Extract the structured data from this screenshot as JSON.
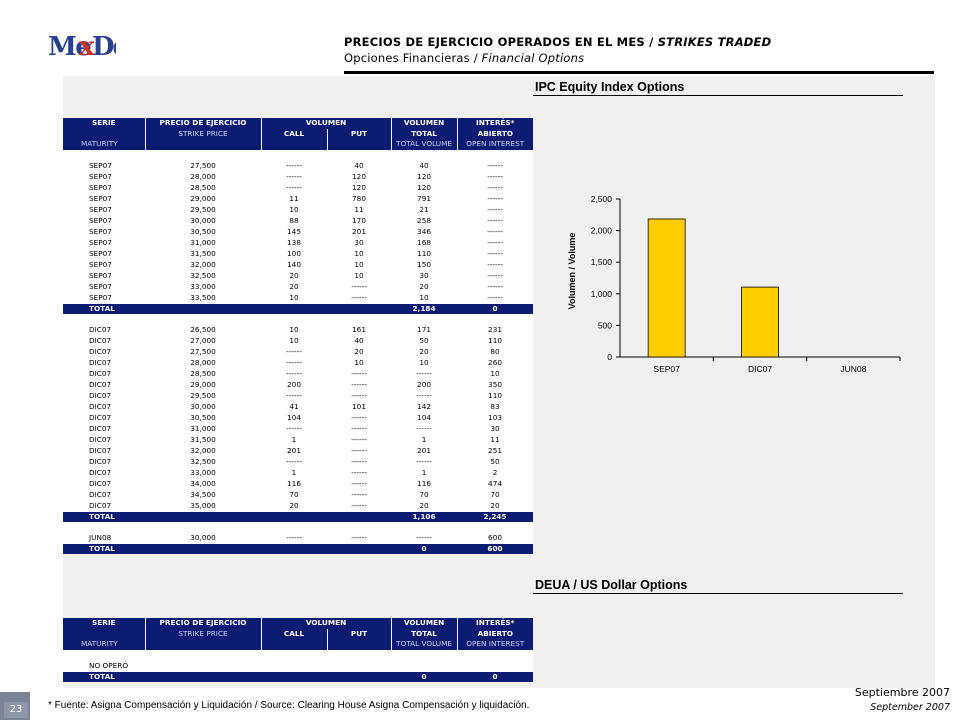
{
  "logo": {
    "text": "MexDer"
  },
  "header": {
    "title_es": "PRECIOS DE EJERCICIO OPERADOS EN EL MES / ",
    "title_en": "STRIKES TRADED",
    "subtitle_es": "Opciones Financieras / ",
    "subtitle_en": "Financial Options"
  },
  "ipc": {
    "section_title": "IPC Equity Index Options",
    "head": {
      "serie": "SERIE",
      "precio": "PRECIO DE EJERCICIO",
      "volumen": "VOLUMEN",
      "volumen2": "VOLUMEN",
      "interes": "INTERÉS*",
      "strike": "STRIKE PRICE",
      "call": "CALL",
      "put": "PUT",
      "total": "TOTAL",
      "abierto": "ABIERTO",
      "maturity": "MATURITY",
      "total_volume": "TOTAL VOLUME",
      "open_interest": "OPEN INTEREST"
    },
    "rows_sep": [
      [
        "SEP07",
        "27,500",
        "------",
        "40",
        "40",
        "------"
      ],
      [
        "SEP07",
        "28,000",
        "------",
        "120",
        "120",
        "------"
      ],
      [
        "SEP07",
        "28,500",
        "------",
        "120",
        "120",
        "------"
      ],
      [
        "SEP07",
        "29,000",
        "11",
        "780",
        "791",
        "------"
      ],
      [
        "SEP07",
        "29,500",
        "10",
        "11",
        "21",
        "------"
      ],
      [
        "SEP07",
        "30,000",
        "88",
        "170",
        "258",
        "------"
      ],
      [
        "SEP07",
        "30,500",
        "145",
        "201",
        "346",
        "------"
      ],
      [
        "SEP07",
        "31,000",
        "138",
        "30",
        "168",
        "------"
      ],
      [
        "SEP07",
        "31,500",
        "100",
        "10",
        "110",
        "------"
      ],
      [
        "SEP07",
        "32,000",
        "140",
        "10",
        "150",
        "------"
      ],
      [
        "SEP07",
        "32,500",
        "20",
        "10",
        "30",
        "------"
      ],
      [
        "SEP07",
        "33,000",
        "20",
        "------",
        "20",
        "------"
      ],
      [
        "SEP07",
        "33,500",
        "10",
        "------",
        "10",
        "------"
      ]
    ],
    "total_sep": [
      "TOTAL",
      "",
      "",
      "",
      "2,184",
      "0"
    ],
    "rows_dic": [
      [
        "DIC07",
        "26,500",
        "10",
        "161",
        "171",
        "231"
      ],
      [
        "DIC07",
        "27,000",
        "10",
        "40",
        "50",
        "110"
      ],
      [
        "DIC07",
        "27,500",
        "------",
        "20",
        "20",
        "80"
      ],
      [
        "DIC07",
        "28,000",
        "------",
        "10",
        "10",
        "260"
      ],
      [
        "DIC07",
        "28,500",
        "------",
        "------",
        "------",
        "10"
      ],
      [
        "DIC07",
        "29,000",
        "200",
        "------",
        "200",
        "350"
      ],
      [
        "DIC07",
        "29,500",
        "------",
        "------",
        "------",
        "110"
      ],
      [
        "DIC07",
        "30,000",
        "41",
        "101",
        "142",
        "83"
      ],
      [
        "DIC07",
        "30,500",
        "104",
        "------",
        "104",
        "103"
      ],
      [
        "DIC07",
        "31,000",
        "------",
        "------",
        "------",
        "30"
      ],
      [
        "DIC07",
        "31,500",
        "1",
        "------",
        "1",
        "11"
      ],
      [
        "DIC07",
        "32,000",
        "201",
        "------",
        "201",
        "251"
      ],
      [
        "DIC07",
        "32,500",
        "------",
        "------",
        "------",
        "50"
      ],
      [
        "DIC07",
        "33,000",
        "1",
        "------",
        "1",
        "2"
      ],
      [
        "DIC07",
        "34,000",
        "116",
        "------",
        "116",
        "474"
      ],
      [
        "DIC07",
        "34,500",
        "70",
        "------",
        "70",
        "70"
      ],
      [
        "DIC07",
        "35,000",
        "20",
        "------",
        "20",
        "20"
      ]
    ],
    "total_dic": [
      "TOTAL",
      "",
      "",
      "",
      "1,106",
      "2,245"
    ],
    "rows_jun": [
      [
        "JUN08",
        "30,000",
        "------",
        "------",
        "------",
        "600"
      ]
    ],
    "total_jun": [
      "TOTAL",
      "",
      "",
      "",
      "0",
      "600"
    ]
  },
  "chart_data": {
    "type": "bar",
    "categories": [
      "SEP07",
      "DIC07",
      "JUN08"
    ],
    "values": [
      2184,
      1106,
      0
    ],
    "ylabel": "Volumen / Volume",
    "ylim": [
      0,
      2500
    ],
    "yticks": [
      "0",
      "500",
      "1,000",
      "1,500",
      "2,000",
      "2,500"
    ],
    "bar_color": "#ffcc00"
  },
  "deua": {
    "section_title": "DEUA / US Dollar Options",
    "head": {
      "serie": "SERIE",
      "precio": "PRECIO DE EJERCICIO",
      "volumen": "VOLUMEN",
      "volumen2": "VOLUMEN",
      "interes": "INTERÉS*",
      "strike": "STRIKE PRICE",
      "call": "CALL",
      "put": "PUT",
      "total": "TOTAL",
      "abierto": "ABIERTO",
      "maturity": "MATURITY",
      "total_volume": "TOTAL VOLUME",
      "open_interest": "OPEN INTEREST"
    },
    "no_opero": "NO OPERÓ",
    "total": [
      "TOTAL",
      "",
      "",
      "",
      "0",
      "0"
    ]
  },
  "footer": {
    "page": "23",
    "note": "* Fuente: Asigna Compensación y Liquidación / Source: Clearing House Asigna Compensación y liquidación.",
    "date_es": "Septiembre 2007",
    "date_en": "September 2007"
  }
}
